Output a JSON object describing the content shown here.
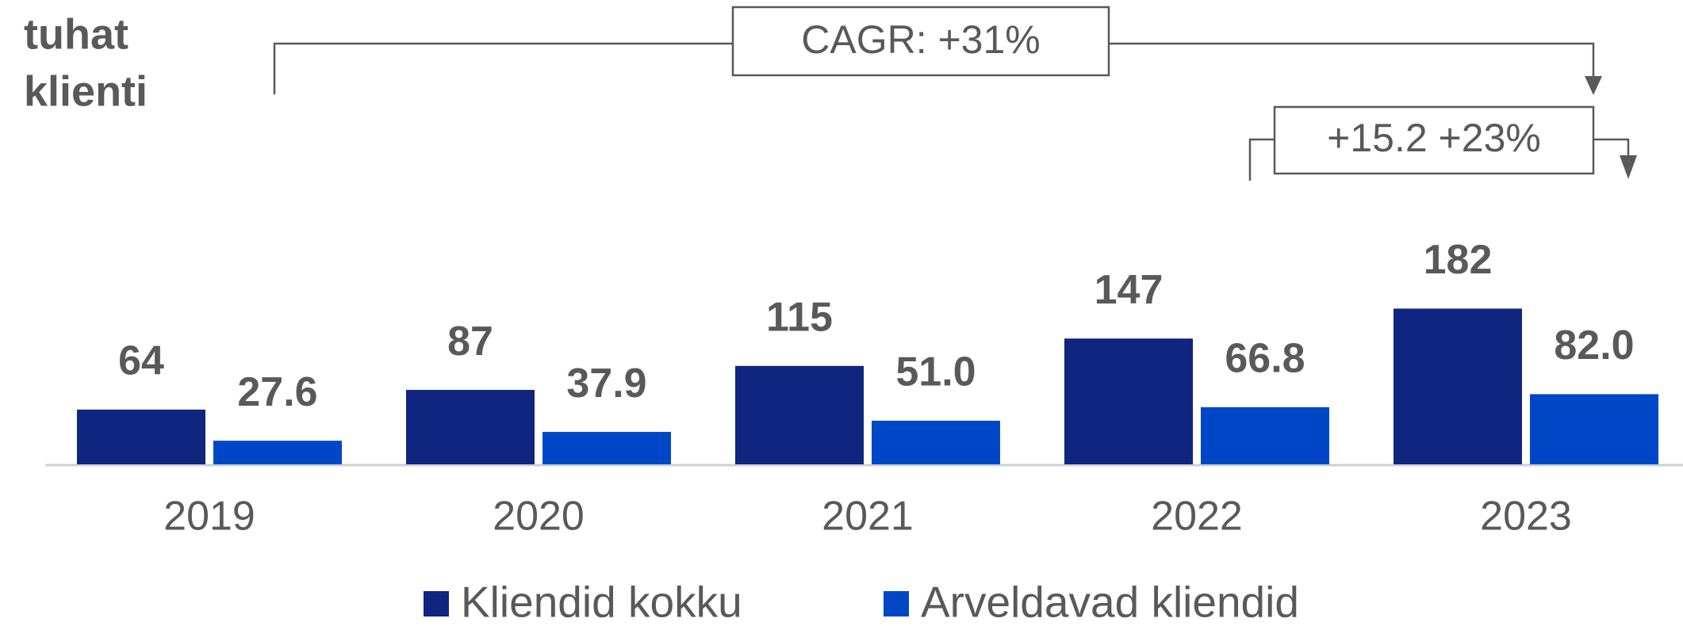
{
  "chart_data": {
    "type": "bar",
    "y_label": [
      "tuhat",
      "klienti"
    ],
    "categories": [
      "2019",
      "2020",
      "2021",
      "2022",
      "2023"
    ],
    "series": [
      {
        "name": "Kliendid kokku",
        "color": "#10257f",
        "values": [
          64,
          87,
          115,
          147,
          182
        ]
      },
      {
        "name": "Arveldavad kliendid",
        "color": "#0047c8",
        "values": [
          27.6,
          37.9,
          51.0,
          66.8,
          82.0
        ],
        "value_labels": [
          "27.6",
          "37.9",
          "51.0",
          "66.8",
          "82.0"
        ]
      }
    ],
    "annotations": [
      "CAGR: +31%",
      "+15.2 +23%"
    ],
    "legend": "bottom"
  }
}
